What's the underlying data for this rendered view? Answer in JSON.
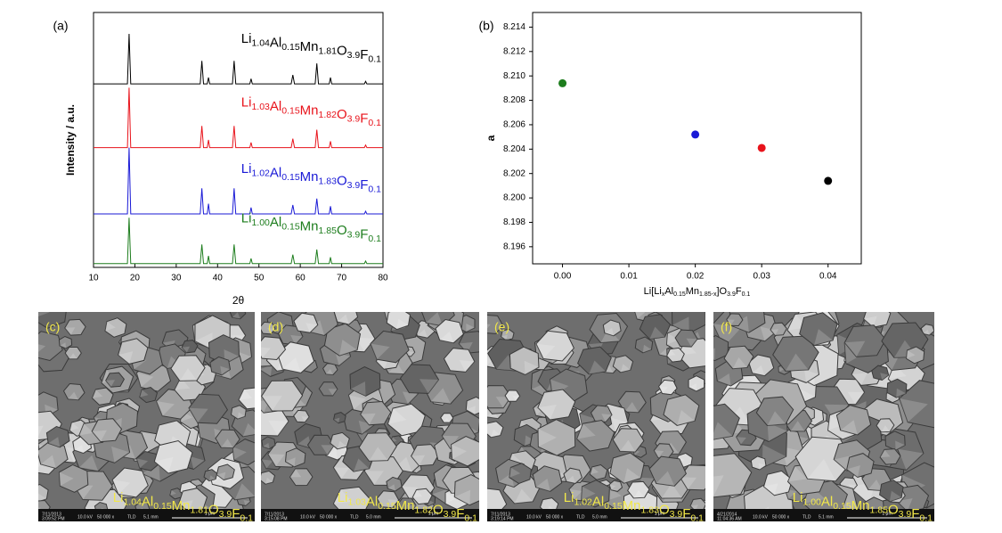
{
  "chart_data": [
    {
      "type": "line",
      "panel_label": "(a)",
      "xlabel": "2θ",
      "ylabel": "Intensity / a.u.",
      "xlim": [
        10,
        80
      ],
      "xticks": [
        10,
        20,
        30,
        40,
        50,
        60,
        70,
        80
      ],
      "ylim": [
        0,
        100
      ],
      "x": [
        10,
        18.2,
        18.6,
        19.0,
        35.8,
        36.2,
        36.6,
        37.5,
        37.8,
        38.1,
        43.6,
        44.0,
        44.4,
        47.8,
        48.1,
        48.4,
        57.8,
        58.2,
        58.6,
        63.6,
        64.0,
        64.4,
        67.0,
        67.3,
        67.6,
        75.5,
        75.8,
        76.1,
        80
      ],
      "series": [
        {
          "name": "Li1.04Al0.15Mn1.81O3.9F0.1",
          "color": "#000000",
          "values": [
            72,
            72,
            91.6,
            72,
            72,
            81,
            72,
            72,
            74.5,
            72,
            72,
            81,
            72,
            72,
            74,
            72,
            72,
            75.5,
            72,
            72,
            80,
            72,
            72,
            74.5,
            72,
            72,
            73,
            72,
            72
          ]
        },
        {
          "name": "Li1.03Al0.15Mn1.82O3.9F0.1",
          "color": "#e8131b",
          "values": [
            47,
            47,
            70.5,
            47,
            47,
            55.5,
            47,
            47,
            50,
            47,
            47,
            55.5,
            47,
            47,
            49,
            47,
            47,
            50.5,
            47,
            47,
            54,
            47,
            47,
            49.5,
            47,
            47,
            48,
            47,
            47
          ]
        },
        {
          "name": "Li1.02Al0.15Mn1.83O3.9F0.1",
          "color": "#1a1ad6",
          "values": [
            21,
            21,
            47,
            21,
            21,
            31,
            21,
            21,
            25,
            21,
            21,
            31,
            21,
            21,
            23.5,
            21,
            21,
            24.5,
            21,
            21,
            27,
            21,
            21,
            24,
            21,
            21,
            22,
            21,
            21
          ]
        },
        {
          "name": "Li1.00Al0.15Mn1.85O3.9F0.1",
          "color": "#1d7d1d",
          "values": [
            1.5,
            1.5,
            19.5,
            1.5,
            1.5,
            9,
            1.5,
            1.5,
            4.5,
            1.5,
            1.5,
            9,
            1.5,
            1.5,
            3.5,
            1.5,
            1.5,
            5,
            1.5,
            1.5,
            7,
            1.5,
            1.5,
            4,
            1.5,
            1.5,
            2.5,
            1.5,
            1.5
          ]
        }
      ]
    },
    {
      "type": "scatter",
      "panel_label": "(b)",
      "ylabel": "a",
      "xlabel": [
        "Li[Li",
        "x",
        "Al",
        "0.15",
        "Mn",
        "1.85-x",
        "]O",
        "3.9",
        "F",
        "0.1"
      ],
      "xlim": [
        -0.0045,
        0.045
      ],
      "xticks": [
        {
          "value": 0,
          "label": "0.00"
        },
        {
          "value": 0.01,
          "label": "0.01"
        },
        {
          "value": 0.02,
          "label": "0.02"
        },
        {
          "value": 0.03,
          "label": "0.03"
        },
        {
          "value": 0.04,
          "label": "0.04"
        }
      ],
      "ylim": [
        8.1946,
        8.2152
      ],
      "yticks": [
        {
          "value": 8.196,
          "label": "8.196"
        },
        {
          "value": 8.198,
          "label": "8.198"
        },
        {
          "value": 8.2,
          "label": "8.200"
        },
        {
          "value": 8.202,
          "label": "8.202"
        },
        {
          "value": 8.204,
          "label": "8.204"
        },
        {
          "value": 8.206,
          "label": "8.206"
        },
        {
          "value": 8.208,
          "label": "8.208"
        },
        {
          "value": 8.21,
          "label": "8.210"
        },
        {
          "value": 8.212,
          "label": "8.212"
        },
        {
          "value": 8.214,
          "label": "8.214"
        }
      ],
      "x": [
        0,
        0.02,
        0.03,
        0.04
      ],
      "values": [
        8.2094,
        8.2052,
        8.2041,
        8.2014
      ],
      "colors": [
        "#1d7d1d",
        "#1a1ad6",
        "#e8131b",
        "#000000"
      ]
    }
  ],
  "sem_panels": [
    {
      "label": "(c)",
      "formula": "Li1.04Al0.15Mn1.81O3.9F0.1",
      "date": "7/11/2013",
      "time": "3:09:52 PM",
      "hv": "10.0 kV",
      "mag": "50 000 x",
      "det": "TLD",
      "wd": "5.1 mm",
      "scale": "1 μm"
    },
    {
      "label": "(d)",
      "formula": "Li1.03Al0.15Mn1.82O3.9F0.1",
      "date": "7/11/2013",
      "time": "3:15:08 PM",
      "hv": "10.0 kV",
      "mag": "50 000 x",
      "det": "TLD",
      "wd": "5.0 mm",
      "scale": "1 μm"
    },
    {
      "label": "(e)",
      "formula": "Li1.02Al0.15Mn1.83O3.9F0.1",
      "date": "7/11/2013",
      "time": "3:19:14 PM",
      "hv": "10.0 kV",
      "mag": "50 000 x",
      "det": "TLD",
      "wd": "5.0 mm",
      "scale": "1 μm"
    },
    {
      "label": "(f)",
      "formula": "Li1.00Al0.15Mn1.85O3.9F0.1",
      "date": "4/21/2014",
      "time": "11:04:36 AM",
      "hv": "10.0 kV",
      "mag": "50 000 x",
      "det": "TLD",
      "wd": "5.1 mm",
      "scale": "1 μm"
    }
  ]
}
